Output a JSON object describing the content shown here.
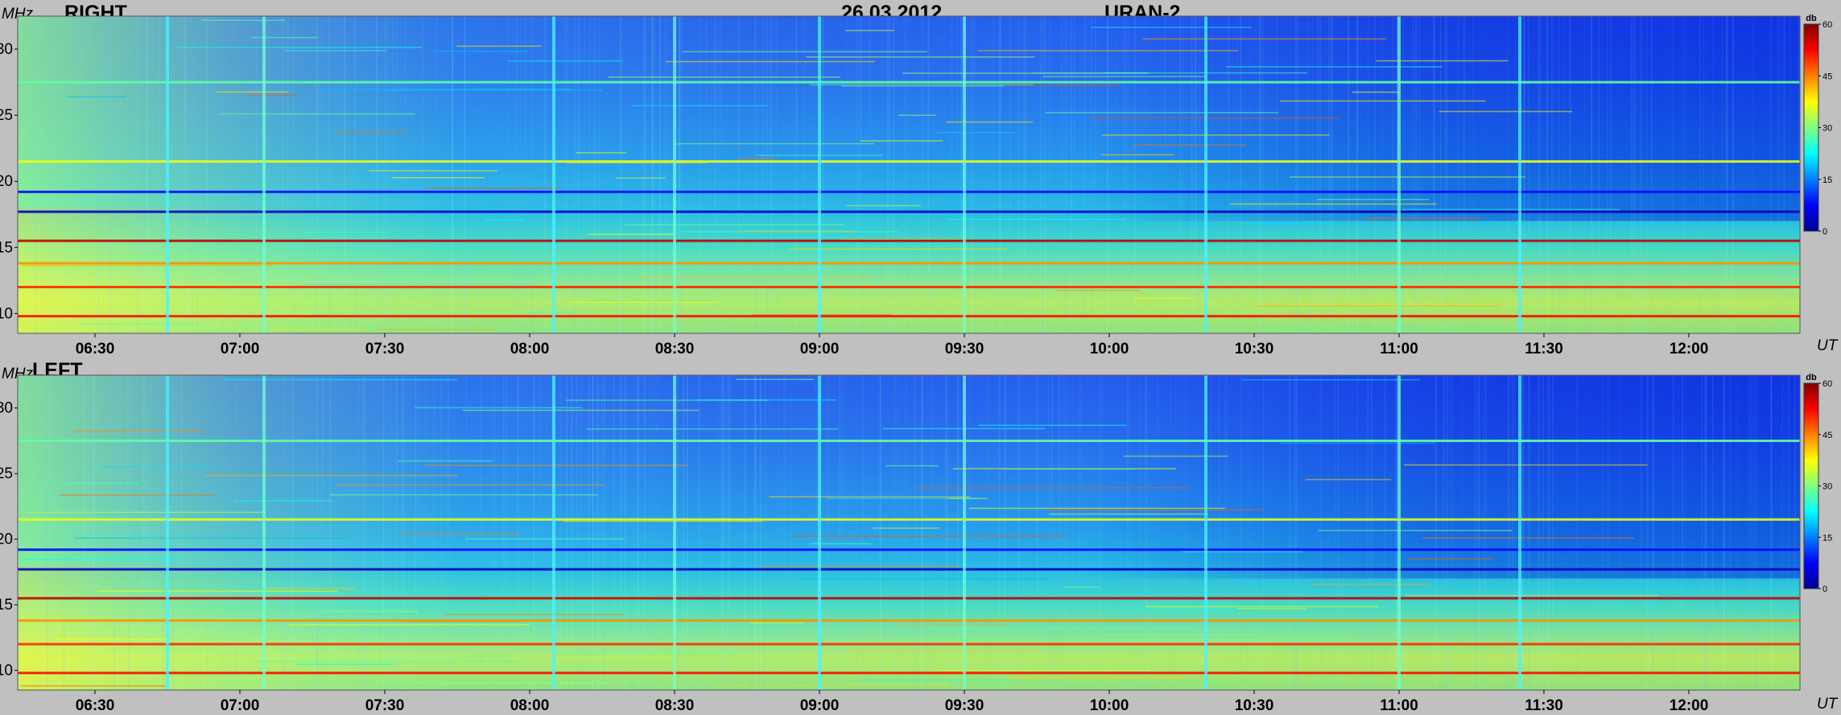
{
  "header": {
    "date": "26.03.2012",
    "station": "URAN-2"
  },
  "colors": {
    "background": "#c0c0c0",
    "colormap": "jet"
  },
  "chart_data": [
    {
      "type": "heatmap",
      "title": "RIGHT",
      "ylabel": "MHz",
      "xlabel": "UT",
      "ylim": [
        8.5,
        32.5
      ],
      "xlim": [
        "06:14",
        "12:23"
      ],
      "yticks": [
        "10",
        "15",
        "20",
        "25",
        "30"
      ],
      "xticks": [
        "06:30",
        "07:00",
        "07:30",
        "08:00",
        "08:30",
        "09:00",
        "09:30",
        "10:00",
        "10:30",
        "11:00",
        "11:30",
        "12:00"
      ],
      "colorbar": {
        "label": "db",
        "range": [
          0,
          60
        ],
        "ticks": [
          "0",
          "15",
          "30",
          "45",
          "60"
        ]
      },
      "features": {
        "broadband_bursts_UT": [
          "06:45",
          "07:05",
          "08:05",
          "08:30",
          "09:00",
          "09:30",
          "10:20",
          "11:00",
          "11:25"
        ],
        "narrowband_interference_MHz": [
          9.8,
          12,
          13.8,
          15.5,
          17.7,
          19.2,
          21.5,
          27.5
        ]
      }
    },
    {
      "type": "heatmap",
      "title": "LEFT",
      "ylabel": "MHz",
      "xlabel": "UT",
      "ylim": [
        8.5,
        32.5
      ],
      "xlim": [
        "06:14",
        "12:23"
      ],
      "yticks": [
        "10",
        "15",
        "20",
        "25",
        "30"
      ],
      "xticks": [
        "06:30",
        "07:00",
        "07:30",
        "08:00",
        "08:30",
        "09:00",
        "09:30",
        "10:00",
        "10:30",
        "11:00",
        "11:30",
        "12:00"
      ],
      "colorbar": {
        "label": "db",
        "range": [
          0,
          60
        ],
        "ticks": [
          "0",
          "15",
          "30",
          "45",
          "60"
        ]
      },
      "features": {
        "broadband_bursts_UT": [
          "06:45",
          "07:05",
          "08:05",
          "08:30",
          "09:00",
          "09:30",
          "10:20",
          "11:00",
          "11:25"
        ],
        "narrowband_interference_MHz": [
          9.8,
          12,
          13.8,
          15.5,
          17.7,
          19.2,
          21.5,
          27.5
        ]
      }
    }
  ]
}
